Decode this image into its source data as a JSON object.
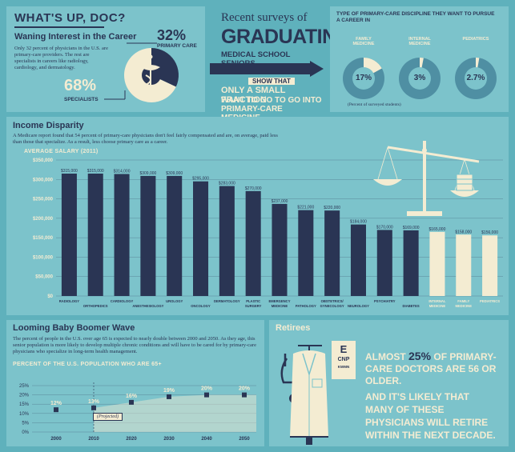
{
  "header": {
    "title": "WHAT'S UP, DOC?",
    "waning_title": "Waning Interest in the Career",
    "waning_body": "Only 32 percent of physicians in the U.S. are primary-care providers. The rest are specialists in careers like radiology, cardiology, and dermatology.",
    "pct_primary": "32%",
    "label_primary": "PRIMARY CARE",
    "pct_specialists": "68%",
    "label_specialists": "SPECIALISTS"
  },
  "surveys": {
    "line1": "Recent surveys of",
    "line2": "GRADUATING",
    "line3": "MEDICAL SCHOOL SENIORS",
    "line4": "SHOW THAT",
    "line5": "ONLY A SMALL FRACTION",
    "line6": "WANT TO GO TO GO INTO",
    "line7": "PRIMARY-CARE MEDICINE."
  },
  "discipline": {
    "title": "TYPE OF PRIMARY-CARE DISCIPLINE THEY WANT TO PURSUE A CAREER IN",
    "note": "(Percent of surveyed students)",
    "items": [
      {
        "label": "FAMILY MEDICINE",
        "value_text": "17%",
        "value": 17
      },
      {
        "label": "INTERNAL MEDICINE",
        "value_text": "3%",
        "value": 3
      },
      {
        "label": "PEDIATRICS",
        "value_text": "2.7%",
        "value": 2.7
      }
    ]
  },
  "income": {
    "title": "Income Disparity",
    "body": "A Medicare report found that 54 percent of primary-care physicians don't feel fairly compensated and are, on average, paid less than those that specialize. As a result, less choose primary care as a career.",
    "chart_title": "AVERAGE SALARY (2011)"
  },
  "boomer": {
    "title": "Looming Baby Boomer Wave",
    "body": "The percent of people in the U.S. over age 65 is expected to nearly double between 2000 and 2050. As they age, this senior population is more likely to develop multiple chronic conditions and will have to be cared for by primary-care physicians who specialize in long-term health management.",
    "chart_title": "PERCENT OF THE U.S. POPULATION WHO ARE 65+",
    "projected_label": "(Projected)"
  },
  "retirees": {
    "title": "Retirees",
    "eye_chart": [
      "E",
      "CNP",
      "KWMN"
    ],
    "stat_pre": "ALMOST ",
    "stat_pct": "25%",
    "stat_post": " OF PRIMARY-CARE DOCTORS ARE 56 OR OLDER.",
    "body": "AND IT'S LIKELY THAT MANY OF THESE PHYSICIANS WILL RETIRE WITHIN THE NEXT DECADE."
  },
  "colors": {
    "background": "#5fb1bc",
    "panel": "#7cc3cb",
    "navy": "#2a3554",
    "cream": "#f4ecd2",
    "donut_ring": "#4f8fa3"
  },
  "chart_data": [
    {
      "type": "bar",
      "title": "AVERAGE SALARY (2011)",
      "xlabel": "",
      "ylabel": "",
      "ylim": [
        0,
        350000
      ],
      "yticks": [
        "$0",
        "$50,000",
        "$100,000",
        "$150,000",
        "$200,000",
        "$250,000",
        "$300,000",
        "$350,000"
      ],
      "categories": [
        "RADIOLOGY",
        "ORTHOPEDICS",
        "CARDIOLOGY",
        "ANESTHESIOLOGY",
        "UROLOGY",
        "ONCOLOGY",
        "DERMATOLOGY",
        "PLASTIC SURGERY",
        "EMERGENCY MEDICINE",
        "PATHOLOGY",
        "OBSTETRICS/ GYNECOLOGY",
        "NEUROLOGY",
        "PSYCHIATRY",
        "DIABETES",
        "INTERNAL MEDICINE",
        "FAMILY MEDICINE",
        "PEDIATRICS"
      ],
      "values": [
        315000,
        315000,
        314000,
        309000,
        309000,
        295000,
        283000,
        270000,
        237000,
        221000,
        220000,
        184000,
        170000,
        169000,
        165000,
        158000,
        156000
      ],
      "value_labels": [
        "$315,000",
        "$315,000",
        "$314,000",
        "$309,000",
        "$309,000",
        "$295,000",
        "$283,000",
        "$270,000",
        "$237,000",
        "$221,000",
        "$220,000",
        "$184,000",
        "$170,000",
        "$169,000",
        "$165,000",
        "$158,000",
        "$156,000"
      ],
      "highlight": [
        "INTERNAL MEDICINE",
        "FAMILY MEDICINE",
        "PEDIATRICS"
      ],
      "grid": true
    },
    {
      "type": "area",
      "title": "PERCENT OF THE U.S. POPULATION WHO ARE 65+",
      "x": [
        2000,
        2010,
        2020,
        2030,
        2040,
        2050
      ],
      "values": [
        12,
        13,
        16,
        19,
        20,
        20
      ],
      "value_labels": [
        "12%",
        "13%",
        "16%",
        "19%",
        "20%",
        "20%"
      ],
      "ylim": [
        0,
        25
      ],
      "yticks": [
        "0%",
        "5%",
        "10%",
        "15%",
        "20%",
        "25%"
      ],
      "projected_from": 2010,
      "grid": true
    },
    {
      "type": "pie",
      "labels": [
        "PRIMARY CARE",
        "SPECIALISTS"
      ],
      "values": [
        32,
        68
      ]
    }
  ]
}
